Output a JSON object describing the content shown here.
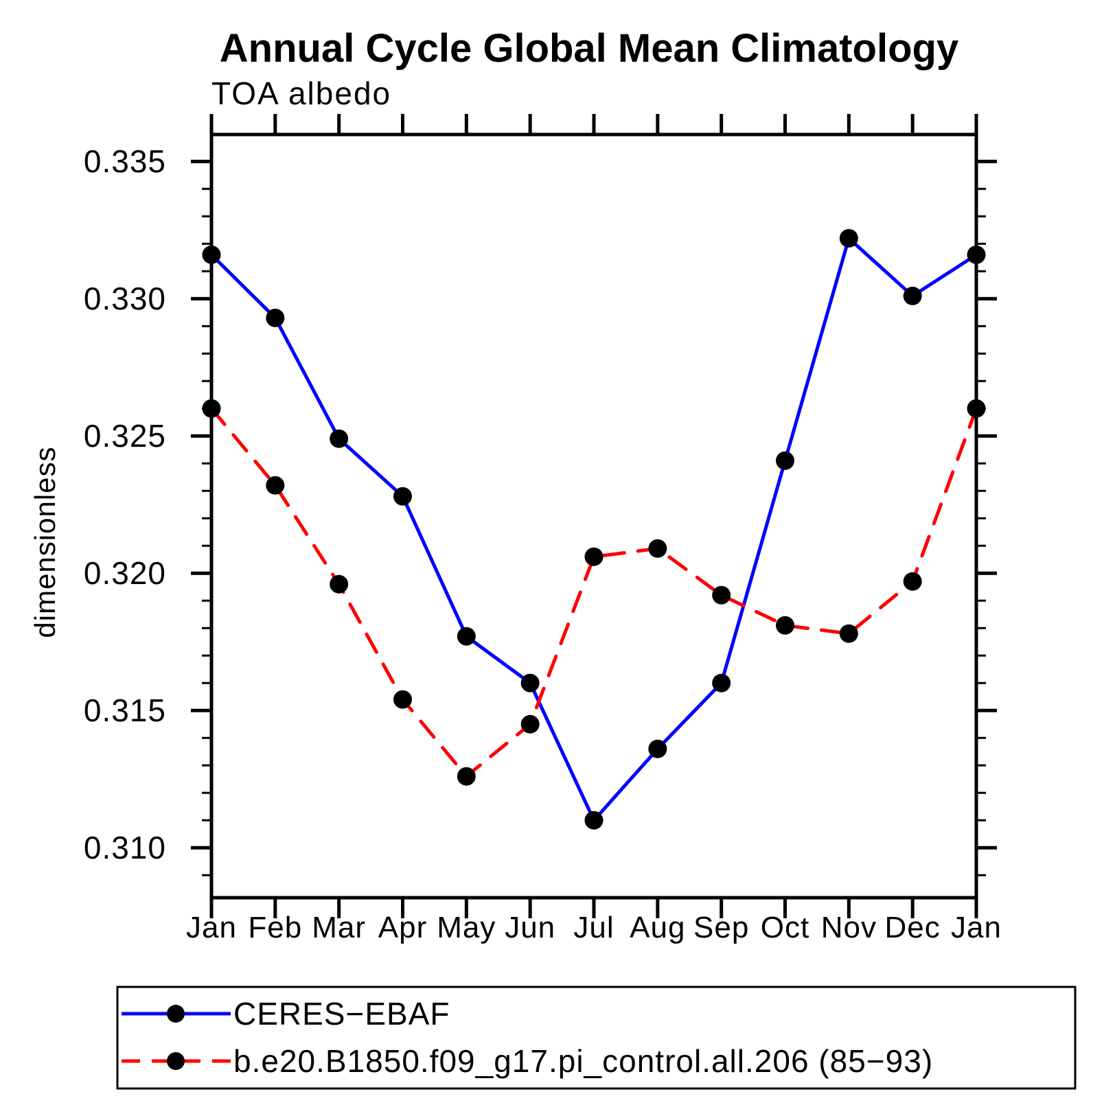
{
  "header": {
    "title": "Annual Cycle Global Mean Climatology",
    "subtitle": "TOA albedo"
  },
  "axes": {
    "ylabel": "dimensionless",
    "ytick_labels": [
      "0.335",
      "0.330",
      "0.325",
      "0.320",
      "0.315",
      "0.310"
    ],
    "xtick_labels": [
      "Jan",
      "Feb",
      "Mar",
      "Apr",
      "May",
      "Jun",
      "Jul",
      "Aug",
      "Sep",
      "Oct",
      "Nov",
      "Dec",
      "Jan"
    ]
  },
  "legend": {
    "entries": [
      {
        "label": "CERES−EBAF",
        "color": "#0000ff",
        "dash": "solid",
        "marker": "circle"
      },
      {
        "label": "b.e20.B1850.f09_g17.pi_control.all.206 (85−93)",
        "color": "#ff0000",
        "dash": "dashed",
        "marker": "circle"
      }
    ]
  },
  "colors": {
    "series1": "#0000ff",
    "series2": "#ff0000",
    "axis": "#000000",
    "marker": "#000000",
    "background": "#ffffff"
  },
  "chart_data": {
    "type": "line",
    "title": "Annual Cycle Global Mean Climatology",
    "subtitle": "TOA albedo",
    "xlabel": "",
    "ylabel": "dimensionless",
    "categories": [
      "Jan",
      "Feb",
      "Mar",
      "Apr",
      "May",
      "Jun",
      "Jul",
      "Aug",
      "Sep",
      "Oct",
      "Nov",
      "Dec",
      "Jan"
    ],
    "series": [
      {
        "name": "CERES−EBAF",
        "color": "#0000ff",
        "dash": "solid",
        "marker": "circle",
        "values": [
          0.3316,
          0.3293,
          0.3249,
          0.3228,
          0.3177,
          0.316,
          0.311,
          0.3136,
          0.316,
          0.3241,
          0.3322,
          0.3301,
          0.3316
        ]
      },
      {
        "name": "b.e20.B1850.f09_g17.pi_control.all.206 (85−93)",
        "color": "#ff0000",
        "dash": "dashed",
        "marker": "circle",
        "values": [
          0.326,
          0.3232,
          0.3196,
          0.3154,
          0.3126,
          0.3145,
          0.3206,
          0.3209,
          0.3192,
          0.3181,
          0.3178,
          0.3197,
          0.326
        ]
      }
    ],
    "yticks": [
      0.335,
      0.33,
      0.325,
      0.32,
      0.315,
      0.31
    ],
    "minor_tick_step": 0.001,
    "ylim": [
      0.30818,
      0.33598
    ],
    "grid": false,
    "legend_position": "bottom",
    "frame": "box",
    "tick_direction": "out"
  }
}
